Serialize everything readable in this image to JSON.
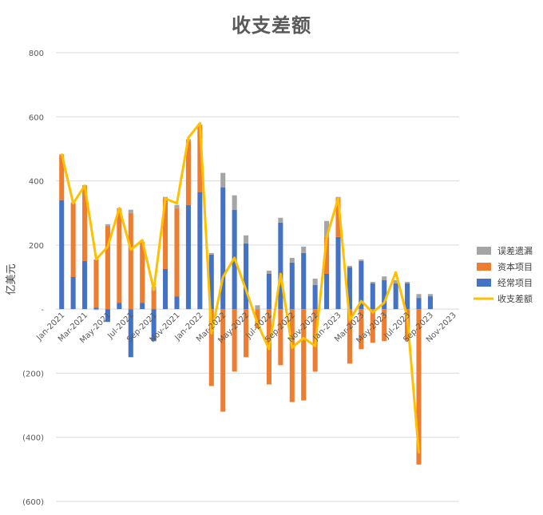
{
  "chart_data": {
    "type": "bar",
    "stacked": true,
    "title": "收支差额",
    "ylabel": "亿美元",
    "xlabel": "",
    "ylim": [
      -600,
      800
    ],
    "y_ticks": [
      800,
      600,
      400,
      200,
      0,
      -200,
      -400,
      -600
    ],
    "y_tick_labels": [
      "800",
      "600",
      "400",
      "200",
      "-",
      "(200)",
      "(400)",
      "(600)"
    ],
    "x_tick_labels": [
      "Jan-2021",
      "Mar-2021",
      "May-2021",
      "Jul-2021",
      "Sep-2021",
      "Nov-2021",
      "Jan-2022",
      "Mar-2022",
      "May-2022",
      "Jul-2022",
      "Sep-2022",
      "Nov-2022",
      "Jan-2023",
      "Mar-2023",
      "May-2023",
      "Jul-2023",
      "Sep-2023",
      "Nov-2023"
    ],
    "grid": true,
    "legend_position": "right",
    "categories": [
      "2021-01",
      "2021-02",
      "2021-03",
      "2021-04",
      "2021-05",
      "2021-06",
      "2021-07",
      "2021-08",
      "2021-09",
      "2021-10",
      "2021-11",
      "2021-12",
      "2022-01",
      "2022-02",
      "2022-03",
      "2022-04",
      "2022-05",
      "2022-06",
      "2022-07",
      "2022-08",
      "2022-09",
      "2022-10",
      "2022-11",
      "2022-12",
      "2023-01",
      "2023-02",
      "2023-03",
      "2023-04",
      "2023-05",
      "2023-06",
      "2023-07",
      "2023-08",
      "2023-09",
      "2023-10",
      "2023-11"
    ],
    "series": [
      {
        "name": "误差遗漏",
        "kind": "bar",
        "color": "#a5a5a5",
        "values": [
          3,
          3,
          2,
          -3,
          5,
          5,
          10,
          0,
          10,
          5,
          10,
          5,
          0,
          5,
          45,
          45,
          25,
          12,
          10,
          15,
          15,
          20,
          20,
          50,
          5,
          5,
          5,
          5,
          12,
          10,
          5,
          12,
          7,
          0,
          0
        ]
      },
      {
        "name": "资本项目",
        "kind": "bar",
        "color": "#ed7d31",
        "values": [
          140,
          230,
          235,
          150,
          260,
          290,
          300,
          190,
          60,
          220,
          275,
          200,
          210,
          -240,
          -320,
          -195,
          -150,
          -60,
          -235,
          -175,
          -290,
          -285,
          -195,
          115,
          120,
          -170,
          -125,
          -105,
          -100,
          0,
          -100,
          -485,
          0,
          0,
          0
        ]
      },
      {
        "name": "经常项目",
        "kind": "bar",
        "color": "#4472c4",
        "values": [
          340,
          100,
          150,
          5,
          -40,
          20,
          -150,
          20,
          -100,
          125,
          40,
          325,
          365,
          170,
          380,
          310,
          205,
          0,
          110,
          270,
          145,
          175,
          75,
          110,
          225,
          130,
          150,
          80,
          90,
          80,
          80,
          35,
          40,
          0,
          0
        ]
      },
      {
        "name": "收支差额",
        "kind": "line",
        "color": "#ffc000",
        "values": [
          485,
          330,
          385,
          155,
          195,
          315,
          185,
          215,
          60,
          345,
          330,
          535,
          580,
          -75,
          100,
          160,
          60,
          -45,
          -125,
          110,
          -120,
          -90,
          -115,
          225,
          345,
          -35,
          25,
          -10,
          20,
          115,
          -25,
          -450,
          null,
          null,
          null
        ]
      }
    ]
  }
}
